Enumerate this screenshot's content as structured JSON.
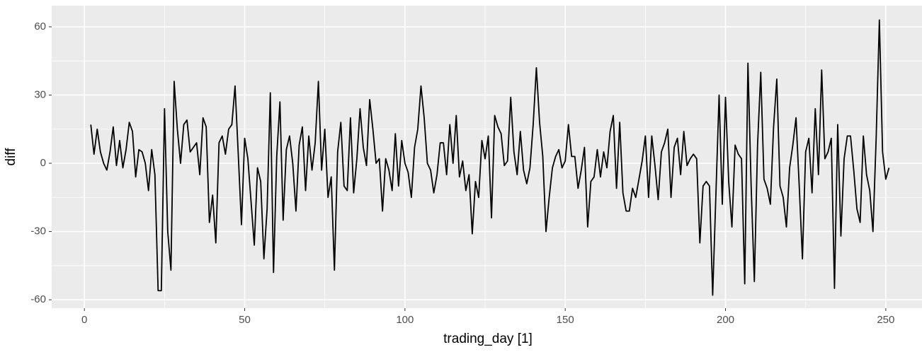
{
  "chart_data": {
    "type": "line",
    "xlabel": "trading_day [1]",
    "ylabel": "diff",
    "x": [
      2,
      3,
      4,
      5,
      6,
      7,
      8,
      9,
      10,
      11,
      12,
      13,
      14,
      15,
      16,
      17,
      18,
      19,
      20,
      21,
      22,
      23,
      24,
      25,
      26,
      27,
      28,
      29,
      30,
      31,
      32,
      33,
      34,
      35,
      36,
      37,
      38,
      39,
      40,
      41,
      42,
      43,
      44,
      45,
      46,
      47,
      48,
      49,
      50,
      51,
      52,
      53,
      54,
      55,
      56,
      57,
      58,
      59,
      60,
      61,
      62,
      63,
      64,
      65,
      66,
      67,
      68,
      69,
      70,
      71,
      72,
      73,
      74,
      75,
      76,
      77,
      78,
      79,
      80,
      81,
      82,
      83,
      84,
      85,
      86,
      87,
      88,
      89,
      90,
      91,
      92,
      93,
      94,
      95,
      96,
      97,
      98,
      99,
      100,
      101,
      102,
      103,
      104,
      105,
      106,
      107,
      108,
      109,
      110,
      111,
      112,
      113,
      114,
      115,
      116,
      117,
      118,
      119,
      120,
      121,
      122,
      123,
      124,
      125,
      126,
      127,
      128,
      129,
      130,
      131,
      132,
      133,
      134,
      135,
      136,
      137,
      138,
      139,
      140,
      141,
      142,
      143,
      144,
      145,
      146,
      147,
      148,
      149,
      150,
      151,
      152,
      153,
      154,
      155,
      156,
      157,
      158,
      159,
      160,
      161,
      162,
      163,
      164,
      165,
      166,
      167,
      168,
      169,
      170,
      171,
      172,
      173,
      174,
      175,
      176,
      177,
      178,
      179,
      180,
      181,
      182,
      183,
      184,
      185,
      186,
      187,
      188,
      189,
      190,
      191,
      192,
      193,
      194,
      195,
      196,
      197,
      198,
      199,
      200,
      201,
      202,
      203,
      204,
      205,
      206,
      207,
      208,
      209,
      210,
      211,
      212,
      213,
      214,
      215,
      216,
      217,
      218,
      219,
      220,
      221,
      222,
      223,
      224,
      225,
      226,
      227,
      228,
      229,
      230,
      231,
      232,
      233,
      234,
      235,
      236,
      237,
      238,
      239,
      240,
      241,
      242,
      243,
      244,
      245,
      246,
      247,
      248,
      249,
      250,
      251
    ],
    "series": [
      {
        "color": "#000000",
        "values": [
          17,
          4,
          15,
          5,
          0,
          -3,
          5,
          16,
          -1,
          10,
          -2,
          6,
          18,
          14,
          -6,
          6,
          5,
          0,
          -12,
          6,
          -5,
          -56,
          -56,
          24,
          -30,
          -47,
          36,
          15,
          0,
          17,
          19,
          5,
          7,
          9,
          -5,
          20,
          16,
          -26,
          -14,
          -35,
          9,
          12,
          4,
          15,
          17,
          34,
          4,
          -27,
          11,
          2,
          -17,
          -36,
          -2,
          -8,
          -42,
          -20,
          31,
          -48,
          3,
          27,
          -25,
          6,
          12,
          0,
          -21,
          8,
          16,
          -12,
          12,
          -3,
          9,
          36,
          -3,
          15,
          -15,
          -6,
          -47,
          5,
          18,
          -10,
          -12,
          20,
          -13,
          2,
          24,
          7,
          -1,
          28,
          15,
          0,
          2,
          -21,
          2,
          -3,
          -12,
          13,
          -10,
          10,
          0,
          -4,
          -15,
          7,
          15,
          34,
          20,
          0,
          -3,
          -13,
          -5,
          9,
          9,
          -5,
          17,
          0,
          21,
          -6,
          1,
          -12,
          -5,
          -31,
          -8,
          -15,
          10,
          2,
          12,
          -24,
          21,
          16,
          13,
          -1,
          1,
          29,
          5,
          -5,
          14,
          -3,
          -9,
          -2,
          17,
          42,
          18,
          3,
          -30,
          -15,
          -2,
          3,
          6,
          -2,
          1,
          17,
          3,
          3,
          -11,
          -3,
          7,
          -28,
          -8,
          -6,
          6,
          -6,
          5,
          -2,
          14,
          21,
          -11,
          18,
          -13,
          -21,
          -21,
          -11,
          -15,
          -7,
          1,
          12,
          -15,
          12,
          -1,
          -16,
          5,
          9,
          15,
          -15,
          7,
          11,
          -5,
          14,
          -1,
          2,
          4,
          2,
          -35,
          -10,
          -8,
          -10,
          -58,
          -14,
          30,
          -18,
          29,
          -8,
          -28,
          8,
          4,
          2,
          -53,
          44,
          -10,
          -52,
          8,
          40,
          -7,
          -11,
          -18,
          16,
          37,
          -10,
          -15,
          -28,
          -2,
          8,
          20,
          -10,
          -42,
          5,
          11,
          -13,
          24,
          -5,
          41,
          2,
          5,
          11,
          -55,
          17,
          -32,
          2,
          12,
          12,
          -3,
          -20,
          -26,
          12,
          -5,
          -12,
          -30,
          11,
          63,
          5,
          -7,
          -2
        ]
      }
    ],
    "xlim": [
      -10.2,
      261.3
    ],
    "ylim": [
      -63.7,
      69.3
    ],
    "xticks": [
      0,
      50,
      100,
      150,
      200,
      250
    ],
    "yticks": [
      -60,
      -30,
      0,
      30,
      60
    ],
    "grid": true
  }
}
